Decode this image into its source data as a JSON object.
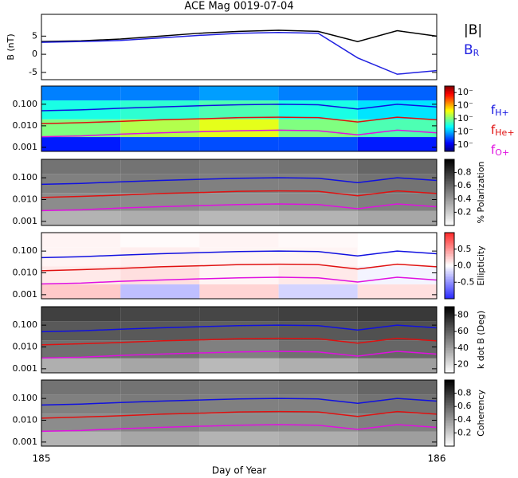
{
  "chart_data": [
    {
      "type": "line",
      "title": "ACE Mag 0019-07-04",
      "ylabel": "B (nT)",
      "x": [
        185,
        185.1,
        185.2,
        185.3,
        185.4,
        185.5,
        185.6,
        185.7,
        185.8,
        185.9,
        186
      ],
      "xlim": [
        185,
        186
      ],
      "ylim": [
        -7,
        11
      ],
      "yticks": [
        -5,
        0,
        5
      ],
      "legend": true,
      "series": [
        {
          "name": "|B|",
          "color": "#000000",
          "values": [
            3.5,
            3.7,
            4.2,
            5.0,
            5.8,
            6.3,
            6.6,
            6.3,
            3.5,
            6.5,
            5.0
          ]
        },
        {
          "name": "B",
          "sub": "R",
          "color": "#2020e0",
          "values": [
            3.3,
            3.5,
            3.8,
            4.5,
            5.2,
            5.8,
            6.0,
            5.8,
            -1.0,
            -5.5,
            -4.5
          ]
        }
      ]
    },
    {
      "type": "heatmap",
      "log": true,
      "colormap": "jet",
      "legend": true,
      "x": [
        185,
        185.1,
        185.2,
        185.3,
        185.4,
        185.5,
        185.6,
        185.7,
        185.8,
        185.9,
        186
      ],
      "xlim": [
        185,
        186
      ],
      "ylim": [
        0.00065,
        0.7
      ],
      "yticks": [
        {
          "value": 0.1,
          "label": "0.100"
        },
        {
          "value": 0.01,
          "label": "0.010"
        },
        0.001
      ],
      "x_bins": [
        185,
        185.2,
        185.4,
        185.6,
        185.8,
        186
      ],
      "y_bins": [
        0.00065,
        0.003,
        0.02,
        0.15,
        0.7
      ],
      "z": [
        [
          0.15,
          0.2,
          0.2,
          0.2,
          0.15
        ],
        [
          0.5,
          0.55,
          0.6,
          0.5,
          0.45
        ],
        [
          0.4,
          0.42,
          0.45,
          0.4,
          0.35
        ],
        [
          0.25,
          0.25,
          0.28,
          0.25,
          0.22
        ]
      ],
      "clim": [
        0,
        1
      ],
      "cticks": [
        {
          "value": 0.1,
          "label": "10⁻"
        },
        {
          "value": 0.3,
          "label": "10⁻"
        },
        {
          "value": 0.5,
          "label": "10⁻"
        },
        {
          "value": 0.7,
          "label": "10⁻"
        },
        {
          "value": 0.9,
          "label": "10⁻"
        }
      ],
      "series": [
        {
          "name": "f",
          "sub": "H+",
          "color": "#1010e0",
          "values": [
            0.05,
            0.055,
            0.065,
            0.075,
            0.085,
            0.095,
            0.1,
            0.095,
            0.06,
            0.1,
            0.075
          ]
        },
        {
          "name": "f",
          "sub": "He+",
          "color": "#e01010",
          "values": [
            0.0125,
            0.014,
            0.016,
            0.019,
            0.021,
            0.024,
            0.025,
            0.024,
            0.015,
            0.025,
            0.019
          ]
        },
        {
          "name": "f",
          "sub": "O+",
          "color": "#e010e0",
          "values": [
            0.0031,
            0.0034,
            0.0041,
            0.0047,
            0.0053,
            0.0059,
            0.0063,
            0.0059,
            0.0038,
            0.0063,
            0.0047
          ]
        }
      ]
    },
    {
      "type": "heatmap",
      "log": true,
      "colormap": "gray_r",
      "clabel": "% Polarization",
      "x": [
        185,
        185.1,
        185.2,
        185.3,
        185.4,
        185.5,
        185.6,
        185.7,
        185.8,
        185.9,
        186
      ],
      "xlim": [
        185,
        186
      ],
      "ylim": [
        0.00065,
        0.7
      ],
      "yticks": [
        {
          "value": 0.1,
          "label": "0.100"
        },
        {
          "value": 0.01,
          "label": "0.010"
        },
        0.001
      ],
      "x_bins": [
        185,
        185.2,
        185.4,
        185.6,
        185.8,
        186
      ],
      "y_bins": [
        0.00065,
        0.003,
        0.02,
        0.15,
        0.7
      ],
      "z": [
        [
          0.3,
          0.32,
          0.28,
          0.3,
          0.35
        ],
        [
          0.45,
          0.45,
          0.42,
          0.45,
          0.5
        ],
        [
          0.5,
          0.52,
          0.5,
          0.5,
          0.55
        ],
        [
          0.55,
          0.55,
          0.52,
          0.55,
          0.6
        ]
      ],
      "clim": [
        0,
        1
      ],
      "cticks": [
        0.2,
        0.4,
        0.6,
        0.8
      ],
      "series": [
        {
          "name": "f",
          "sub": "H+",
          "color": "#1010e0",
          "values": [
            0.05,
            0.055,
            0.065,
            0.075,
            0.085,
            0.095,
            0.1,
            0.095,
            0.06,
            0.1,
            0.075
          ]
        },
        {
          "name": "f",
          "sub": "He+",
          "color": "#e01010",
          "values": [
            0.0125,
            0.014,
            0.016,
            0.019,
            0.021,
            0.024,
            0.025,
            0.024,
            0.015,
            0.025,
            0.019
          ]
        },
        {
          "name": "f",
          "sub": "O+",
          "color": "#e010e0",
          "values": [
            0.0031,
            0.0034,
            0.0041,
            0.0047,
            0.0053,
            0.0059,
            0.0063,
            0.0059,
            0.0038,
            0.0063,
            0.0047
          ]
        }
      ]
    },
    {
      "type": "heatmap",
      "log": true,
      "colormap": "bwr",
      "clabel": "Ellipticity",
      "x": [
        185,
        185.1,
        185.2,
        185.3,
        185.4,
        185.5,
        185.6,
        185.7,
        185.8,
        185.9,
        186
      ],
      "xlim": [
        185,
        186
      ],
      "ylim": [
        0.00065,
        0.7
      ],
      "yticks": [
        {
          "value": 0.1,
          "label": "0.100"
        },
        {
          "value": 0.01,
          "label": "0.010"
        },
        0.001
      ],
      "x_bins": [
        185,
        185.2,
        185.4,
        185.6,
        185.8,
        186
      ],
      "y_bins": [
        0.00065,
        0.003,
        0.02,
        0.15,
        0.7
      ],
      "z": [
        [
          0.25,
          -0.3,
          0.2,
          -0.2,
          0.15
        ],
        [
          0.1,
          0.15,
          0.05,
          0.1,
          -0.05
        ],
        [
          0.05,
          0.08,
          0.05,
          0.05,
          0.0
        ],
        [
          0.05,
          0.02,
          0.05,
          0.03,
          0.0
        ]
      ],
      "clim": [
        -1,
        1
      ],
      "cticks": [
        -0.5,
        {
          "value": 0,
          "label": "0.0"
        },
        0.5
      ],
      "series": [
        {
          "name": "f",
          "sub": "H+",
          "color": "#1010e0",
          "values": [
            0.05,
            0.055,
            0.065,
            0.075,
            0.085,
            0.095,
            0.1,
            0.095,
            0.06,
            0.1,
            0.075
          ]
        },
        {
          "name": "f",
          "sub": "He+",
          "color": "#e01010",
          "values": [
            0.0125,
            0.014,
            0.016,
            0.019,
            0.021,
            0.024,
            0.025,
            0.024,
            0.015,
            0.025,
            0.019
          ]
        },
        {
          "name": "f",
          "sub": "O+",
          "color": "#e010e0",
          "values": [
            0.0031,
            0.0034,
            0.0041,
            0.0047,
            0.0053,
            0.0059,
            0.0063,
            0.0059,
            0.0038,
            0.0063,
            0.0047
          ]
        }
      ]
    },
    {
      "type": "heatmap",
      "log": true,
      "colormap": "gray_r",
      "clabel": "k dot B (Deg)",
      "x": [
        185,
        185.1,
        185.2,
        185.3,
        185.4,
        185.5,
        185.6,
        185.7,
        185.8,
        185.9,
        186
      ],
      "xlim": [
        185,
        186
      ],
      "ylim": [
        0.00065,
        0.7
      ],
      "yticks": [
        {
          "value": 0.1,
          "label": "0.100"
        },
        {
          "value": 0.01,
          "label": "0.010"
        },
        0.001
      ],
      "x_bins": [
        185,
        185.2,
        185.4,
        185.6,
        185.8,
        186
      ],
      "y_bins": [
        0.00065,
        0.003,
        0.02,
        0.15,
        0.7
      ],
      "z": [
        [
          35,
          38,
          32,
          35,
          40
        ],
        [
          55,
          55,
          50,
          55,
          58
        ],
        [
          62,
          62,
          60,
          62,
          65
        ],
        [
          70,
          68,
          68,
          70,
          72
        ]
      ],
      "clim": [
        10,
        90
      ],
      "cticks": [
        20,
        40,
        60,
        80
      ],
      "series": [
        {
          "name": "f",
          "sub": "H+",
          "color": "#1010e0",
          "values": [
            0.05,
            0.055,
            0.065,
            0.075,
            0.085,
            0.095,
            0.1,
            0.095,
            0.06,
            0.1,
            0.075
          ]
        },
        {
          "name": "f",
          "sub": "He+",
          "color": "#e01010",
          "values": [
            0.0125,
            0.014,
            0.016,
            0.019,
            0.021,
            0.024,
            0.025,
            0.024,
            0.015,
            0.025,
            0.019
          ]
        },
        {
          "name": "f",
          "sub": "O+",
          "color": "#e010e0",
          "values": [
            0.0031,
            0.0034,
            0.0041,
            0.0047,
            0.0053,
            0.0059,
            0.0063,
            0.0059,
            0.0038,
            0.0063,
            0.0047
          ]
        }
      ]
    },
    {
      "type": "heatmap",
      "log": true,
      "colormap": "gray_r",
      "clabel": "Coherency",
      "xlabel": "Day of Year",
      "x": [
        185,
        185.1,
        185.2,
        185.3,
        185.4,
        185.5,
        185.6,
        185.7,
        185.8,
        185.9,
        186
      ],
      "xlim": [
        185,
        186
      ],
      "xticks": [
        185,
        186
      ],
      "ylim": [
        0.00065,
        0.7
      ],
      "yticks": [
        {
          "value": 0.1,
          "label": "0.100"
        },
        {
          "value": 0.01,
          "label": "0.010"
        },
        0.001
      ],
      "x_bins": [
        185,
        185.2,
        185.4,
        185.6,
        185.8,
        186
      ],
      "y_bins": [
        0.00065,
        0.003,
        0.02,
        0.15,
        0.7
      ],
      "z": [
        [
          0.3,
          0.35,
          0.3,
          0.32,
          0.38
        ],
        [
          0.45,
          0.48,
          0.45,
          0.45,
          0.5
        ],
        [
          0.5,
          0.52,
          0.5,
          0.5,
          0.55
        ],
        [
          0.55,
          0.55,
          0.52,
          0.55,
          0.6
        ]
      ],
      "clim": [
        0,
        1
      ],
      "cticks": [
        0.2,
        0.4,
        0.6,
        0.8
      ],
      "series": [
        {
          "name": "f",
          "sub": "H+",
          "color": "#1010e0",
          "values": [
            0.05,
            0.055,
            0.065,
            0.075,
            0.085,
            0.095,
            0.1,
            0.095,
            0.06,
            0.1,
            0.075
          ]
        },
        {
          "name": "f",
          "sub": "He+",
          "color": "#e01010",
          "values": [
            0.0125,
            0.014,
            0.016,
            0.019,
            0.021,
            0.024,
            0.025,
            0.024,
            0.015,
            0.025,
            0.019
          ]
        },
        {
          "name": "f",
          "sub": "O+",
          "color": "#e010e0",
          "values": [
            0.0031,
            0.0034,
            0.0041,
            0.0047,
            0.0053,
            0.0059,
            0.0063,
            0.0059,
            0.0038,
            0.0063,
            0.0047
          ]
        }
      ]
    }
  ]
}
